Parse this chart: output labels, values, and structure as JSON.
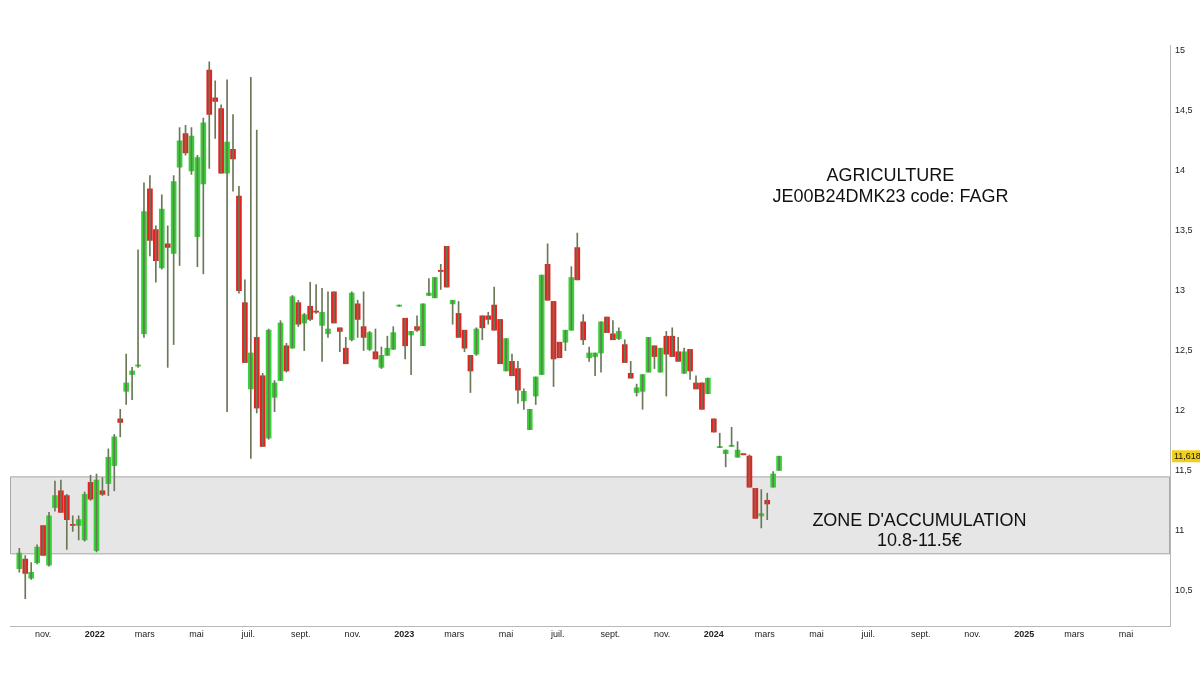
{
  "chart_data": {
    "type": "candlestick",
    "x": [
      "2021-10-04",
      "2021-10-11",
      "2021-10-18",
      "2021-10-25",
      "2021-11-01",
      "2021-11-08",
      "2021-11-15",
      "2021-11-22",
      "2021-11-29",
      "2021-12-06",
      "2021-12-13",
      "2021-12-20",
      "2021-12-27",
      "2022-01-03",
      "2022-01-10",
      "2022-01-17",
      "2022-01-24",
      "2022-01-31",
      "2022-02-07",
      "2022-02-14",
      "2022-02-21",
      "2022-02-28",
      "2022-03-07",
      "2022-03-14",
      "2022-03-21",
      "2022-03-28",
      "2022-04-04",
      "2022-04-11",
      "2022-04-18",
      "2022-04-25",
      "2022-05-02",
      "2022-05-09",
      "2022-05-16",
      "2022-05-23",
      "2022-05-30",
      "2022-06-06",
      "2022-06-13",
      "2022-06-20",
      "2022-06-27",
      "2022-07-04",
      "2022-07-11",
      "2022-07-18",
      "2022-07-25",
      "2022-08-01",
      "2022-08-08",
      "2022-08-15",
      "2022-08-22",
      "2022-08-29",
      "2022-09-05",
      "2022-09-12",
      "2022-09-19",
      "2022-09-26",
      "2022-10-03",
      "2022-10-10",
      "2022-10-17",
      "2022-10-24",
      "2022-10-31",
      "2022-11-07",
      "2022-11-14",
      "2022-11-21",
      "2022-11-28",
      "2022-12-05",
      "2022-12-12",
      "2022-12-19",
      "2022-12-26",
      "2023-01-02",
      "2023-01-09",
      "2023-01-16",
      "2023-01-23",
      "2023-01-30",
      "2023-02-06",
      "2023-02-13",
      "2023-02-20",
      "2023-02-27",
      "2023-03-06",
      "2023-03-13",
      "2023-03-20",
      "2023-03-27",
      "2023-04-03",
      "2023-04-10",
      "2023-04-17",
      "2023-04-24",
      "2023-05-01",
      "2023-05-08",
      "2023-05-15",
      "2023-05-22",
      "2023-05-29",
      "2023-06-05",
      "2023-06-12",
      "2023-06-19",
      "2023-06-26",
      "2023-07-03",
      "2023-07-10",
      "2023-07-17",
      "2023-07-24",
      "2023-07-31",
      "2023-08-07",
      "2023-08-14",
      "2023-08-21",
      "2023-08-28",
      "2023-09-04",
      "2023-09-11",
      "2023-09-18",
      "2023-09-25",
      "2023-10-02",
      "2023-10-09",
      "2023-10-16",
      "2023-10-23",
      "2023-10-30",
      "2023-11-06",
      "2023-11-13",
      "2023-11-20",
      "2023-11-27",
      "2023-12-04",
      "2023-12-11",
      "2023-12-18",
      "2023-12-25",
      "2024-01-01",
      "2024-01-08",
      "2024-01-15",
      "2024-01-22",
      "2024-01-29",
      "2024-02-05",
      "2024-02-12",
      "2024-02-19",
      "2024-02-26",
      "2024-03-04",
      "2024-03-11",
      "2024-03-18"
    ],
    "ohlc": [
      [
        10.68,
        10.85,
        10.65,
        10.81
      ],
      [
        10.76,
        10.79,
        10.43,
        10.64
      ],
      [
        10.6,
        10.73,
        10.59,
        10.65
      ],
      [
        10.73,
        10.88,
        10.72,
        10.86
      ],
      [
        11.04,
        11.04,
        10.79,
        10.79
      ],
      [
        10.71,
        11.15,
        10.7,
        11.12
      ],
      [
        11.19,
        11.41,
        11.16,
        11.29
      ],
      [
        11.33,
        11.42,
        11.15,
        11.15
      ],
      [
        11.29,
        11.3,
        10.84,
        11.09
      ],
      [
        11.05,
        11.12,
        10.99,
        11.04
      ],
      [
        11.04,
        11.12,
        10.92,
        11.09
      ],
      [
        10.92,
        11.32,
        10.91,
        11.3
      ],
      [
        11.4,
        11.46,
        11.25,
        11.26
      ],
      [
        10.83,
        11.47,
        10.82,
        11.42
      ],
      [
        11.33,
        11.44,
        11.29,
        11.3
      ],
      [
        11.39,
        11.68,
        11.29,
        11.61
      ],
      [
        11.54,
        11.8,
        11.33,
        11.78
      ],
      [
        11.93,
        12.01,
        11.78,
        11.9
      ],
      [
        12.16,
        12.47,
        12.05,
        12.23
      ],
      [
        12.3,
        12.36,
        12.09,
        12.33
      ],
      [
        12.37,
        13.34,
        12.36,
        12.38
      ],
      [
        12.64,
        13.9,
        12.61,
        13.66
      ],
      [
        13.85,
        13.96,
        13.29,
        13.42
      ],
      [
        13.51,
        13.54,
        13.07,
        13.25
      ],
      [
        13.19,
        13.8,
        13.18,
        13.68
      ],
      [
        13.39,
        13.54,
        12.36,
        13.36
      ],
      [
        13.31,
        13.96,
        12.55,
        13.91
      ],
      [
        14.03,
        14.36,
        13.21,
        14.25
      ],
      [
        14.31,
        14.38,
        14.13,
        14.15
      ],
      [
        14.0,
        14.36,
        13.97,
        14.29
      ],
      [
        13.45,
        14.13,
        13.2,
        14.11
      ],
      [
        13.89,
        14.44,
        13.14,
        14.4
      ],
      [
        14.84,
        14.91,
        14.02,
        14.47
      ],
      [
        14.61,
        14.75,
        14.27,
        14.58
      ],
      [
        14.52,
        14.55,
        13.98,
        13.98
      ],
      [
        13.98,
        14.76,
        11.99,
        14.24
      ],
      [
        14.18,
        14.47,
        13.83,
        14.1
      ],
      [
        13.79,
        13.87,
        12.98,
        13.0
      ],
      [
        12.9,
        13.09,
        12.4,
        12.4
      ],
      [
        12.18,
        14.78,
        11.6,
        12.48
      ],
      [
        12.61,
        14.34,
        11.98,
        12.02
      ],
      [
        12.29,
        12.31,
        11.7,
        11.7
      ],
      [
        11.77,
        12.68,
        11.76,
        12.67
      ],
      [
        12.11,
        12.25,
        11.99,
        12.23
      ],
      [
        12.25,
        12.75,
        12.25,
        12.73
      ],
      [
        12.54,
        12.56,
        12.32,
        12.33
      ],
      [
        12.52,
        12.96,
        12.52,
        12.95
      ],
      [
        12.9,
        12.92,
        12.7,
        12.72
      ],
      [
        12.73,
        12.81,
        12.5,
        12.8
      ],
      [
        12.87,
        13.07,
        12.75,
        12.76
      ],
      [
        12.83,
        13.05,
        12.81,
        12.82
      ],
      [
        12.71,
        13.02,
        12.41,
        12.82
      ],
      [
        12.64,
        12.99,
        12.61,
        12.68
      ],
      [
        12.99,
        12.99,
        12.73,
        12.73
      ],
      [
        12.69,
        12.69,
        12.49,
        12.66
      ],
      [
        12.52,
        12.61,
        12.39,
        12.39
      ],
      [
        12.59,
        12.99,
        12.58,
        12.98
      ],
      [
        12.89,
        12.92,
        12.61,
        12.76
      ],
      [
        12.7,
        12.99,
        12.5,
        12.61
      ],
      [
        12.51,
        12.66,
        12.5,
        12.65
      ],
      [
        12.49,
        12.68,
        12.43,
        12.43
      ],
      [
        12.36,
        12.53,
        12.35,
        12.46
      ],
      [
        12.46,
        12.62,
        12.46,
        12.52
      ],
      [
        12.51,
        12.7,
        12.51,
        12.65
      ],
      [
        12.87,
        12.88,
        12.87,
        12.88
      ],
      [
        12.77,
        12.77,
        12.43,
        12.54
      ],
      [
        12.63,
        12.66,
        12.3,
        12.66
      ],
      [
        12.7,
        12.79,
        12.66,
        12.67
      ],
      [
        12.54,
        12.89,
        12.54,
        12.89
      ],
      [
        12.96,
        13.1,
        12.96,
        12.98
      ],
      [
        12.94,
        13.11,
        12.94,
        13.11
      ],
      [
        13.17,
        13.22,
        13.01,
        13.16
      ],
      [
        13.37,
        13.37,
        13.03,
        13.03
      ],
      [
        12.89,
        12.92,
        12.72,
        12.92
      ],
      [
        12.81,
        12.91,
        12.61,
        12.61
      ],
      [
        12.67,
        12.67,
        12.49,
        12.52
      ],
      [
        12.46,
        12.46,
        12.15,
        12.33
      ],
      [
        12.47,
        12.69,
        12.46,
        12.68
      ],
      [
        12.79,
        12.79,
        12.59,
        12.69
      ],
      [
        12.79,
        12.82,
        12.72,
        12.76
      ],
      [
        12.88,
        13.03,
        12.67,
        12.67
      ],
      [
        12.76,
        12.76,
        12.39,
        12.39
      ],
      [
        12.33,
        12.6,
        12.33,
        12.6
      ],
      [
        12.41,
        12.47,
        12.29,
        12.29
      ],
      [
        12.35,
        12.41,
        12.06,
        12.17
      ],
      [
        12.08,
        12.18,
        12.01,
        12.16
      ],
      [
        11.84,
        12.01,
        11.84,
        12.01
      ],
      [
        12.12,
        12.28,
        12.05,
        12.28
      ],
      [
        12.3,
        13.13,
        12.3,
        13.13
      ],
      [
        13.22,
        13.39,
        12.92,
        12.92
      ],
      [
        12.91,
        12.91,
        12.2,
        12.43
      ],
      [
        12.57,
        12.57,
        12.44,
        12.44
      ],
      [
        12.57,
        12.67,
        12.5,
        12.67
      ],
      [
        12.67,
        13.2,
        12.67,
        13.11
      ],
      [
        13.36,
        13.48,
        13.09,
        13.09
      ],
      [
        12.74,
        12.8,
        12.55,
        12.59
      ],
      [
        12.44,
        12.53,
        12.41,
        12.48
      ],
      [
        12.45,
        12.48,
        12.29,
        12.48
      ],
      [
        12.48,
        12.74,
        12.32,
        12.74
      ],
      [
        12.78,
        12.78,
        12.65,
        12.65
      ],
      [
        12.64,
        12.75,
        12.59,
        12.59
      ],
      [
        12.6,
        12.69,
        12.59,
        12.66
      ],
      [
        12.55,
        12.59,
        12.4,
        12.4
      ],
      [
        12.31,
        12.41,
        12.27,
        12.27
      ],
      [
        12.15,
        12.22,
        12.12,
        12.19
      ],
      [
        12.16,
        12.3,
        12.01,
        12.3
      ],
      [
        12.32,
        12.61,
        12.32,
        12.61
      ],
      [
        12.54,
        12.54,
        12.35,
        12.45
      ],
      [
        12.32,
        12.52,
        12.32,
        12.52
      ],
      [
        12.62,
        12.66,
        12.12,
        12.47
      ],
      [
        12.62,
        12.69,
        12.45,
        12.45
      ],
      [
        12.49,
        12.61,
        12.41,
        12.41
      ],
      [
        12.31,
        12.52,
        12.31,
        12.49
      ],
      [
        12.51,
        12.51,
        12.26,
        12.33
      ],
      [
        12.23,
        12.29,
        12.18,
        12.18
      ],
      [
        12.23,
        12.23,
        12.01,
        12.01
      ],
      [
        12.14,
        12.27,
        12.14,
        12.27
      ],
      [
        11.93,
        11.93,
        11.82,
        11.82
      ],
      [
        11.69,
        11.81,
        11.69,
        11.7
      ],
      [
        11.64,
        11.67,
        11.53,
        11.67
      ],
      [
        11.7,
        11.86,
        11.7,
        11.71
      ],
      [
        11.61,
        11.74,
        11.61,
        11.67
      ],
      [
        11.64,
        11.64,
        11.63,
        11.63
      ],
      [
        11.62,
        11.63,
        11.36,
        11.36
      ],
      [
        11.35,
        11.35,
        11.1,
        11.1
      ],
      [
        11.12,
        11.34,
        11.02,
        11.14
      ],
      [
        11.25,
        11.31,
        11.09,
        11.22
      ],
      [
        11.36,
        11.49,
        11.36,
        11.47
      ],
      [
        11.5,
        11.62,
        11.5,
        11.618
      ]
    ],
    "colors": [
      "#35d335",
      "#e32222",
      "#35d335",
      "#35d335",
      "#e32222",
      "#35d335",
      "#35d335",
      "#e32222",
      "#e32222",
      "#e32222",
      "#35d335",
      "#35d335",
      "#e32222",
      "#35d335",
      "#e32222",
      "#35d335",
      "#35d335",
      "#e32222",
      "#35d335",
      "#35d335",
      "#35d335",
      "#35d335",
      "#e32222",
      "#e32222",
      "#35d335",
      "#e32222",
      "#35d335",
      "#35d335",
      "#e32222",
      "#35d335",
      "#35d335",
      "#35d335",
      "#e32222",
      "#e32222",
      "#e32222",
      "#35d335",
      "#e32222",
      "#e32222",
      "#e32222",
      "#35d335",
      "#e32222",
      "#e32222",
      "#35d335",
      "#35d335",
      "#35d335",
      "#e32222",
      "#35d335",
      "#e32222",
      "#35d335",
      "#e32222",
      "#e32222",
      "#35d335",
      "#35d335",
      "#e32222",
      "#e32222",
      "#e32222",
      "#35d335",
      "#e32222",
      "#e32222",
      "#35d335",
      "#e32222",
      "#35d335",
      "#35d335",
      "#35d335",
      "#35d335",
      "#e32222",
      "#35d335",
      "#e32222",
      "#35d335",
      "#35d335",
      "#35d335",
      "#e32222",
      "#e32222",
      "#35d335",
      "#e32222",
      "#e32222",
      "#e32222",
      "#35d335",
      "#e32222",
      "#e32222",
      "#e32222",
      "#e32222",
      "#35d335",
      "#e32222",
      "#e32222",
      "#35d335",
      "#35d335",
      "#35d335",
      "#35d335",
      "#e32222",
      "#e32222",
      "#e32222",
      "#35d335",
      "#35d335",
      "#e32222",
      "#e32222",
      "#35d335",
      "#35d335",
      "#35d335",
      "#e32222",
      "#e32222",
      "#35d335",
      "#e32222",
      "#e32222",
      "#35d335",
      "#35d335",
      "#35d335",
      "#e32222",
      "#35d335",
      "#e32222",
      "#e32222",
      "#e32222",
      "#35d335",
      "#e32222",
      "#e32222",
      "#e32222",
      "#35d335",
      "#e32222",
      "#35d335",
      "#35d335",
      "#35d335",
      "#35d335",
      "#e32222",
      "#e32222",
      "#e32222",
      "#35d335",
      "#e32222",
      "#35d335",
      "#35d335"
    ],
    "color": "#6a7858",
    "xlim": [
      "2021-09-23",
      "2025-06-22"
    ],
    "xticks": [
      {
        "value": "2021-11-01",
        "label": "nov."
      },
      {
        "value": "2022-01-01",
        "label": "2022"
      },
      {
        "value": "2022-03-01",
        "label": "mars"
      },
      {
        "value": "2022-05-01",
        "label": "mai"
      },
      {
        "value": "2022-07-01",
        "label": "juil."
      },
      {
        "value": "2022-09-01",
        "label": "sept."
      },
      {
        "value": "2022-11-01",
        "label": "nov."
      },
      {
        "value": "2023-01-01",
        "label": "2023"
      },
      {
        "value": "2023-03-01",
        "label": "mars"
      },
      {
        "value": "2023-05-01",
        "label": "mai"
      },
      {
        "value": "2023-07-01",
        "label": "juil."
      },
      {
        "value": "2023-09-01",
        "label": "sept."
      },
      {
        "value": "2023-11-01",
        "label": "nov."
      },
      {
        "value": "2024-01-01",
        "label": "2024"
      },
      {
        "value": "2024-03-01",
        "label": "mars"
      },
      {
        "value": "2024-05-01",
        "label": "mai"
      },
      {
        "value": "2024-07-01",
        "label": "juil."
      },
      {
        "value": "2024-09-01",
        "label": "sept."
      },
      {
        "value": "2024-11-01",
        "label": "nov."
      },
      {
        "value": "2025-01-01",
        "label": "2025"
      },
      {
        "value": "2025-03-01",
        "label": "mars"
      },
      {
        "value": "2025-05-01",
        "label": "mai"
      }
    ],
    "ylim": [
      10.2,
      15.05
    ],
    "yticks": [
      {
        "value": 10.5,
        "label": "10,5"
      },
      11,
      {
        "value": 11.5,
        "label": "11,5"
      },
      12,
      {
        "value": 12.5,
        "label": "12,5"
      },
      13,
      {
        "value": 13.5,
        "label": "13,5"
      },
      14,
      {
        "value": 14.5,
        "label": "14,5"
      },
      15
    ],
    "bands": [
      {
        "axis": "y",
        "from": 10.8,
        "to": 11.45,
        "label": "ZONE D'ACCUMULATION\n10.8-11.5€",
        "color": "#e6e6e6"
      }
    ],
    "annotations": [
      "AGRICULTURE",
      "JE00B24DMK23 code: FAGR",
      {
        "text": "11,618",
        "y": 11.618
      }
    ]
  }
}
